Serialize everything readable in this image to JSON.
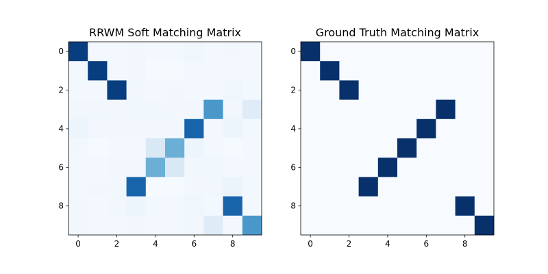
{
  "chart_data": [
    {
      "type": "heatmap",
      "title": "RRWM Soft Matching Matrix",
      "colormap": "Blues",
      "vmin": 0,
      "vmax": 1,
      "x_ticks": [
        "0",
        "2",
        "4",
        "6",
        "8"
      ],
      "y_ticks": [
        "0",
        "2",
        "4",
        "6",
        "8"
      ],
      "grid": false,
      "matrix": [
        [
          0.95,
          0.02,
          0.02,
          0.03,
          0.02,
          0.02,
          0.04,
          0.02,
          0.03,
          0.02
        ],
        [
          0.02,
          0.95,
          0.02,
          0.03,
          0.01,
          0.01,
          0.02,
          0.02,
          0.02,
          0.02
        ],
        [
          0.02,
          0.02,
          0.95,
          0.03,
          0.02,
          0.03,
          0.02,
          0.02,
          0.04,
          0.02
        ],
        [
          0.03,
          0.03,
          0.03,
          0.04,
          0.03,
          0.03,
          0.03,
          0.6,
          0.03,
          0.12
        ],
        [
          0.05,
          0.03,
          0.03,
          0.03,
          0.03,
          0.03,
          0.8,
          0.02,
          0.05,
          0.02
        ],
        [
          0.03,
          0.01,
          0.02,
          0.02,
          0.15,
          0.5,
          0.05,
          0.02,
          0.01,
          0.02
        ],
        [
          0.02,
          0.02,
          0.03,
          0.03,
          0.5,
          0.15,
          0.03,
          0.04,
          0.02,
          0.02
        ],
        [
          0.02,
          0.03,
          0.03,
          0.8,
          0.01,
          0.01,
          0.03,
          0.03,
          0.06,
          0.02
        ],
        [
          0.03,
          0.02,
          0.03,
          0.05,
          0.02,
          0.02,
          0.04,
          0.02,
          0.8,
          0.02
        ],
        [
          0.03,
          0.02,
          0.02,
          0.03,
          0.02,
          0.02,
          0.03,
          0.12,
          0.02,
          0.6
        ]
      ]
    },
    {
      "type": "heatmap",
      "title": "Ground Truth Matching Matrix",
      "colormap": "Blues",
      "vmin": 0,
      "vmax": 1,
      "x_ticks": [
        "0",
        "2",
        "4",
        "6",
        "8"
      ],
      "y_ticks": [
        "0",
        "2",
        "4",
        "6",
        "8"
      ],
      "grid": false,
      "matrix": [
        [
          1,
          0,
          0,
          0,
          0,
          0,
          0,
          0,
          0,
          0
        ],
        [
          0,
          1,
          0,
          0,
          0,
          0,
          0,
          0,
          0,
          0
        ],
        [
          0,
          0,
          1,
          0,
          0,
          0,
          0,
          0,
          0,
          0
        ],
        [
          0,
          0,
          0,
          0,
          0,
          0,
          0,
          1,
          0,
          0
        ],
        [
          0,
          0,
          0,
          0,
          0,
          0,
          1,
          0,
          0,
          0
        ],
        [
          0,
          0,
          0,
          0,
          0,
          1,
          0,
          0,
          0,
          0
        ],
        [
          0,
          0,
          0,
          0,
          1,
          0,
          0,
          0,
          0,
          0
        ],
        [
          0,
          0,
          0,
          1,
          0,
          0,
          0,
          0,
          0,
          0
        ],
        [
          0,
          0,
          0,
          0,
          0,
          0,
          0,
          0,
          1,
          0
        ],
        [
          0,
          0,
          0,
          0,
          0,
          0,
          0,
          0,
          0,
          1
        ]
      ]
    }
  ]
}
